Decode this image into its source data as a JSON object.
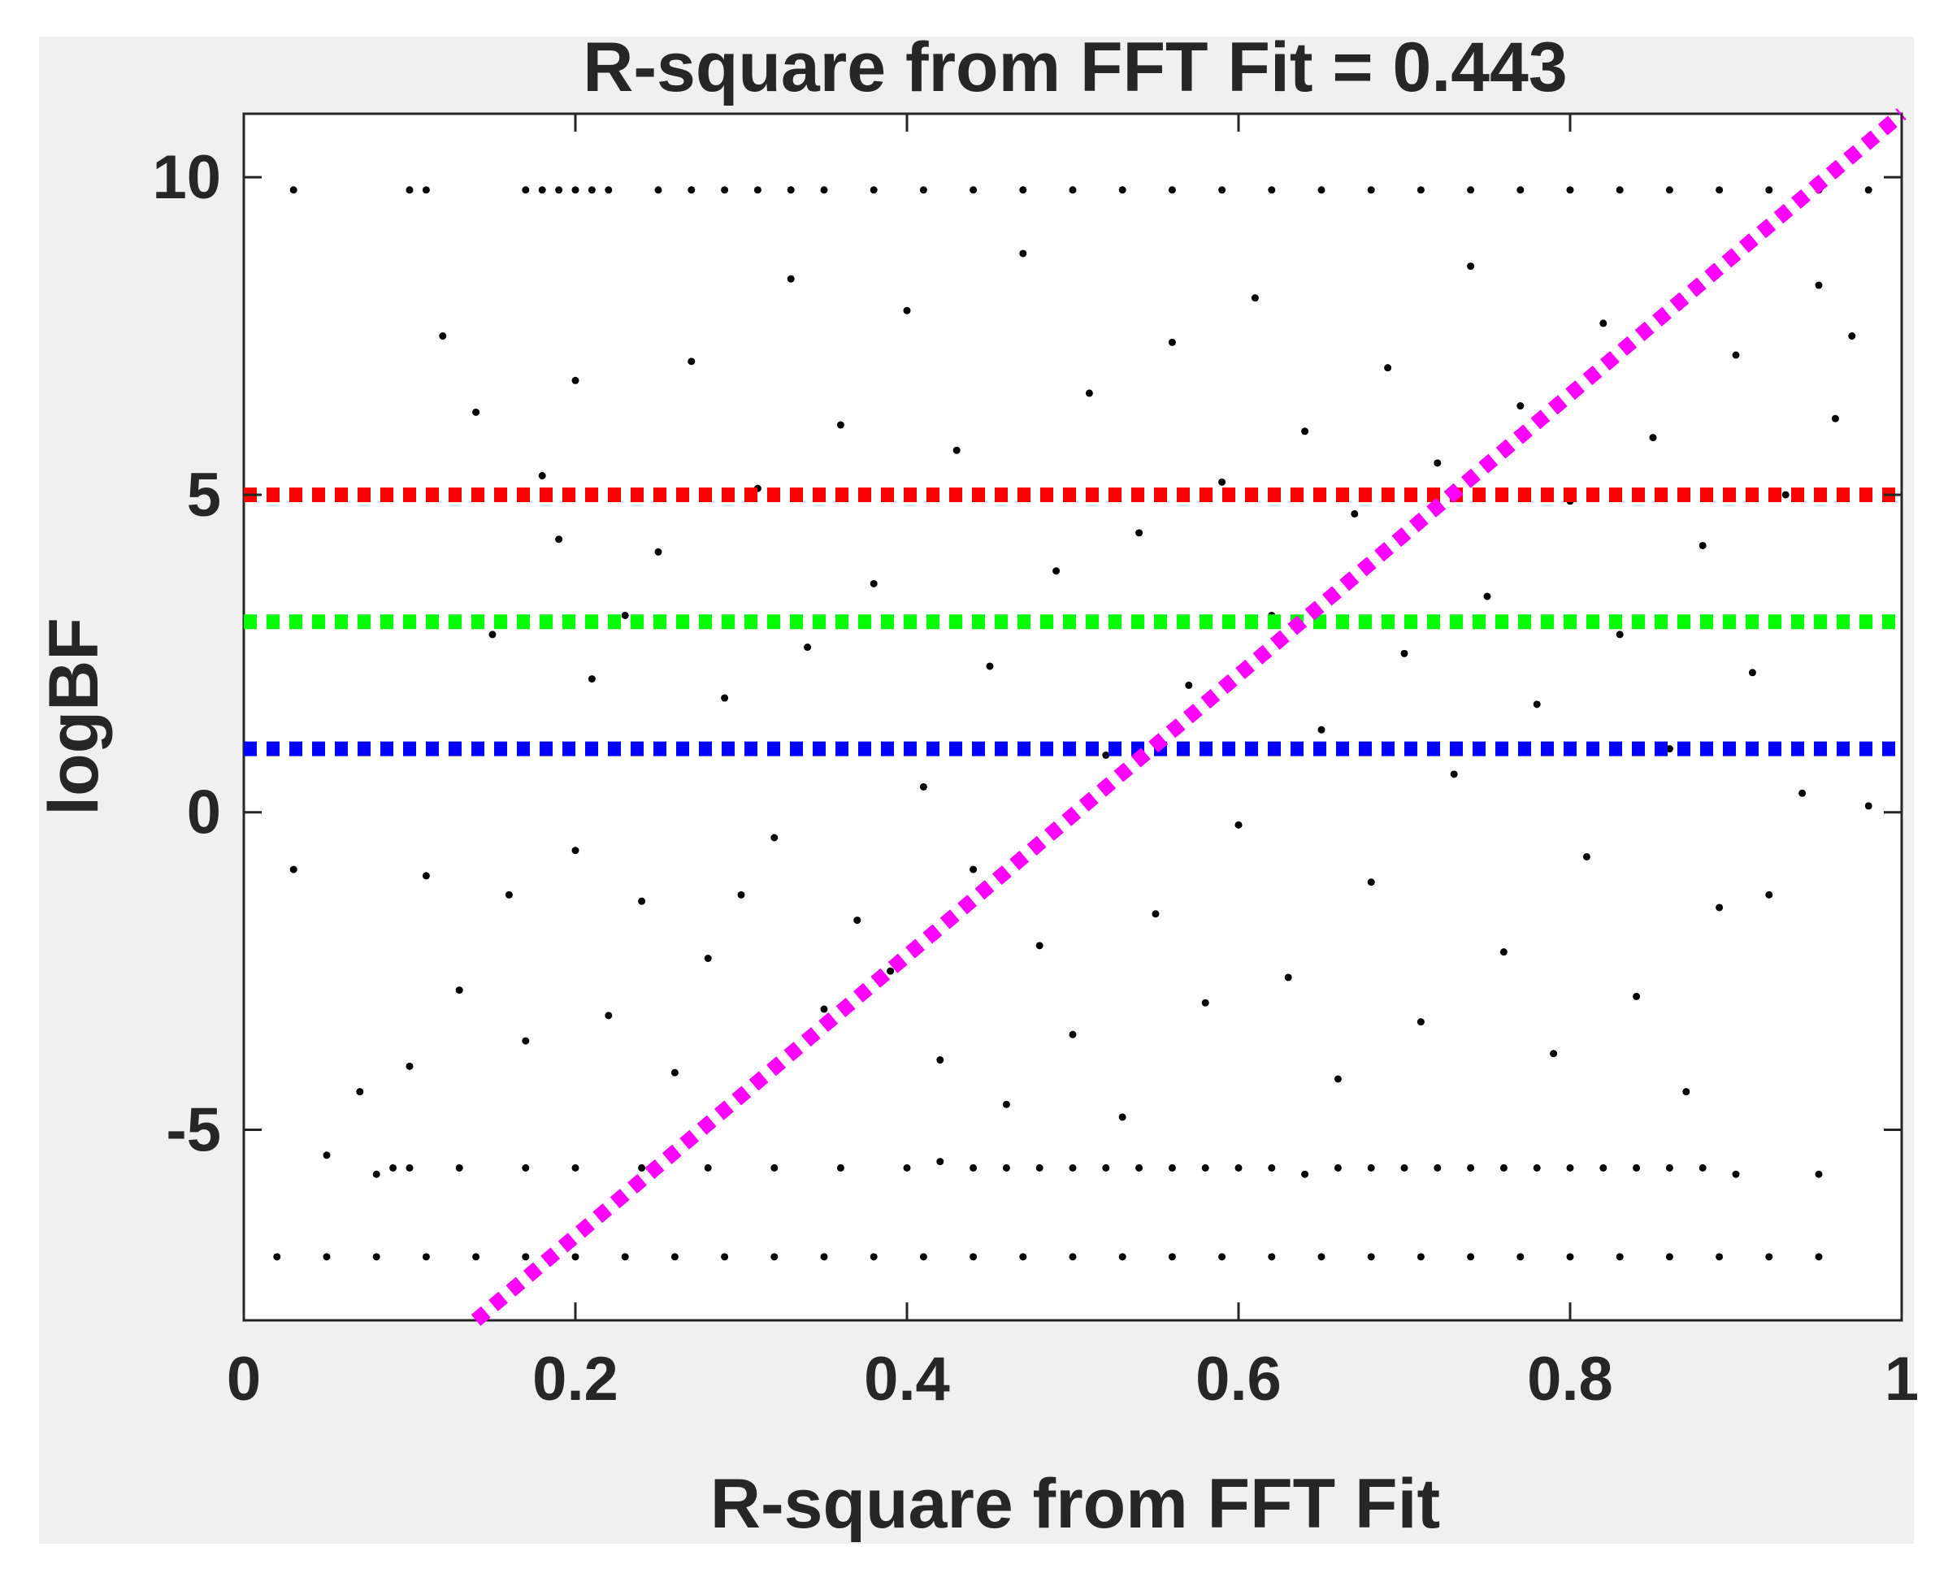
{
  "chart_data": {
    "type": "scatter",
    "title": "R-square from FFT Fit = 0.443",
    "xlabel": "R-square from FFT Fit",
    "ylabel": "logBF",
    "xlim": [
      0,
      1
    ],
    "ylim": [
      -8,
      11
    ],
    "xticks": [
      0,
      0.2,
      0.4,
      0.6,
      0.8,
      1
    ],
    "xtick_labels": [
      "0",
      "0.2",
      "0.4",
      "0.6",
      "0.8",
      "1"
    ],
    "yticks": [
      -5,
      0,
      5,
      10
    ],
    "ytick_labels": [
      "-5",
      "0",
      "5",
      "10"
    ],
    "grid": false,
    "point_color": "#000000",
    "background_color": "#f0f0f0",
    "plot_background_color": "#ffffff",
    "reference_lines": [
      {
        "orientation": "horizontal",
        "y": 5,
        "color": "#ff0000",
        "style": "dotted"
      },
      {
        "orientation": "horizontal",
        "y": 3,
        "color": "#00ff00",
        "style": "dotted"
      },
      {
        "orientation": "horizontal",
        "y": 1,
        "color": "#0000ff",
        "style": "dotted"
      }
    ],
    "fit_line": {
      "x": [
        0.14,
        1.0
      ],
      "y": [
        -8.0,
        11.0
      ],
      "color": "#ff00ff",
      "style": "dotted"
    },
    "scatter_description_values": {
      "upper_band_y": 9.8,
      "lower_band_y": -7.0,
      "secondary_lower_band_y": -5.6
    },
    "points": [
      [
        0.03,
        9.8
      ],
      [
        0.1,
        9.8
      ],
      [
        0.11,
        9.8
      ],
      [
        0.17,
        9.8
      ],
      [
        0.18,
        9.8
      ],
      [
        0.19,
        9.8
      ],
      [
        0.2,
        9.8
      ],
      [
        0.21,
        9.8
      ],
      [
        0.22,
        9.8
      ],
      [
        0.25,
        9.8
      ],
      [
        0.27,
        9.8
      ],
      [
        0.29,
        9.8
      ],
      [
        0.31,
        9.8
      ],
      [
        0.33,
        9.8
      ],
      [
        0.35,
        9.8
      ],
      [
        0.38,
        9.8
      ],
      [
        0.41,
        9.8
      ],
      [
        0.44,
        9.8
      ],
      [
        0.47,
        9.8
      ],
      [
        0.5,
        9.8
      ],
      [
        0.53,
        9.8
      ],
      [
        0.56,
        9.8
      ],
      [
        0.59,
        9.8
      ],
      [
        0.62,
        9.8
      ],
      [
        0.65,
        9.8
      ],
      [
        0.68,
        9.8
      ],
      [
        0.71,
        9.8
      ],
      [
        0.74,
        9.8
      ],
      [
        0.77,
        9.8
      ],
      [
        0.8,
        9.8
      ],
      [
        0.83,
        9.8
      ],
      [
        0.86,
        9.8
      ],
      [
        0.89,
        9.8
      ],
      [
        0.92,
        9.8
      ],
      [
        0.95,
        9.8
      ],
      [
        0.98,
        9.8
      ],
      [
        0.02,
        -7.0
      ],
      [
        0.05,
        -7.0
      ],
      [
        0.08,
        -7.0
      ],
      [
        0.11,
        -7.0
      ],
      [
        0.14,
        -7.0
      ],
      [
        0.17,
        -7.0
      ],
      [
        0.2,
        -7.0
      ],
      [
        0.23,
        -7.0
      ],
      [
        0.26,
        -7.0
      ],
      [
        0.29,
        -7.0
      ],
      [
        0.32,
        -7.0
      ],
      [
        0.35,
        -7.0
      ],
      [
        0.38,
        -7.0
      ],
      [
        0.41,
        -7.0
      ],
      [
        0.44,
        -7.0
      ],
      [
        0.47,
        -7.0
      ],
      [
        0.5,
        -7.0
      ],
      [
        0.53,
        -7.0
      ],
      [
        0.56,
        -7.0
      ],
      [
        0.59,
        -7.0
      ],
      [
        0.62,
        -7.0
      ],
      [
        0.65,
        -7.0
      ],
      [
        0.68,
        -7.0
      ],
      [
        0.71,
        -7.0
      ],
      [
        0.74,
        -7.0
      ],
      [
        0.77,
        -7.0
      ],
      [
        0.8,
        -7.0
      ],
      [
        0.83,
        -7.0
      ],
      [
        0.86,
        -7.0
      ],
      [
        0.89,
        -7.0
      ],
      [
        0.92,
        -7.0
      ],
      [
        0.95,
        -7.0
      ],
      [
        0.08,
        -5.7
      ],
      [
        0.09,
        -5.6
      ],
      [
        0.1,
        -5.6
      ],
      [
        0.13,
        -5.6
      ],
      [
        0.17,
        -5.6
      ],
      [
        0.2,
        -5.6
      ],
      [
        0.24,
        -5.6
      ],
      [
        0.28,
        -5.6
      ],
      [
        0.32,
        -5.6
      ],
      [
        0.36,
        -5.6
      ],
      [
        0.4,
        -5.6
      ],
      [
        0.42,
        -5.5
      ],
      [
        0.44,
        -5.6
      ],
      [
        0.46,
        -5.6
      ],
      [
        0.48,
        -5.6
      ],
      [
        0.5,
        -5.6
      ],
      [
        0.52,
        -5.6
      ],
      [
        0.54,
        -5.6
      ],
      [
        0.56,
        -5.6
      ],
      [
        0.58,
        -5.6
      ],
      [
        0.6,
        -5.6
      ],
      [
        0.62,
        -5.6
      ],
      [
        0.64,
        -5.7
      ],
      [
        0.66,
        -5.6
      ],
      [
        0.68,
        -5.6
      ],
      [
        0.7,
        -5.6
      ],
      [
        0.72,
        -5.6
      ],
      [
        0.74,
        -5.6
      ],
      [
        0.76,
        -5.6
      ],
      [
        0.78,
        -5.6
      ],
      [
        0.8,
        -5.6
      ],
      [
        0.82,
        -5.6
      ],
      [
        0.84,
        -5.6
      ],
      [
        0.86,
        -5.6
      ],
      [
        0.88,
        -5.6
      ],
      [
        0.9,
        -5.7
      ],
      [
        0.95,
        -5.7
      ],
      [
        0.03,
        -0.9
      ],
      [
        0.05,
        -5.4
      ],
      [
        0.07,
        -4.4
      ],
      [
        0.1,
        -4.0
      ],
      [
        0.11,
        -1.0
      ],
      [
        0.12,
        7.5
      ],
      [
        0.13,
        -2.8
      ],
      [
        0.14,
        6.3
      ],
      [
        0.15,
        2.8
      ],
      [
        0.16,
        -1.3
      ],
      [
        0.17,
        -3.6
      ],
      [
        0.18,
        5.3
      ],
      [
        0.19,
        4.3
      ],
      [
        0.2,
        6.8
      ],
      [
        0.2,
        -0.6
      ],
      [
        0.21,
        2.1
      ],
      [
        0.22,
        -3.2
      ],
      [
        0.23,
        3.1
      ],
      [
        0.24,
        -1.4
      ],
      [
        0.25,
        4.1
      ],
      [
        0.26,
        -4.1
      ],
      [
        0.27,
        7.1
      ],
      [
        0.28,
        -2.3
      ],
      [
        0.29,
        1.8
      ],
      [
        0.3,
        -1.3
      ],
      [
        0.31,
        5.1
      ],
      [
        0.32,
        -0.4
      ],
      [
        0.33,
        8.4
      ],
      [
        0.34,
        2.6
      ],
      [
        0.35,
        -3.1
      ],
      [
        0.36,
        6.1
      ],
      [
        0.37,
        -1.7
      ],
      [
        0.38,
        3.6
      ],
      [
        0.39,
        -2.5
      ],
      [
        0.4,
        7.9
      ],
      [
        0.41,
        0.4
      ],
      [
        0.42,
        -3.9
      ],
      [
        0.43,
        5.7
      ],
      [
        0.44,
        -0.9
      ],
      [
        0.45,
        2.3
      ],
      [
        0.46,
        -4.6
      ],
      [
        0.47,
        8.8
      ],
      [
        0.48,
        -2.1
      ],
      [
        0.49,
        3.8
      ],
      [
        0.5,
        -3.5
      ],
      [
        0.51,
        6.6
      ],
      [
        0.52,
        0.9
      ],
      [
        0.53,
        -4.8
      ],
      [
        0.54,
        4.4
      ],
      [
        0.55,
        -1.6
      ],
      [
        0.56,
        7.4
      ],
      [
        0.57,
        2.0
      ],
      [
        0.58,
        -3.0
      ],
      [
        0.59,
        5.2
      ],
      [
        0.6,
        -0.2
      ],
      [
        0.61,
        8.1
      ],
      [
        0.62,
        3.1
      ],
      [
        0.63,
        -2.6
      ],
      [
        0.64,
        6.0
      ],
      [
        0.65,
        1.3
      ],
      [
        0.66,
        -4.2
      ],
      [
        0.67,
        4.7
      ],
      [
        0.68,
        -1.1
      ],
      [
        0.69,
        7.0
      ],
      [
        0.7,
        2.5
      ],
      [
        0.71,
        -3.3
      ],
      [
        0.72,
        5.5
      ],
      [
        0.73,
        0.6
      ],
      [
        0.74,
        8.6
      ],
      [
        0.75,
        3.4
      ],
      [
        0.76,
        -2.2
      ],
      [
        0.77,
        6.4
      ],
      [
        0.78,
        1.7
      ],
      [
        0.79,
        -3.8
      ],
      [
        0.8,
        4.9
      ],
      [
        0.81,
        -0.7
      ],
      [
        0.82,
        7.7
      ],
      [
        0.83,
        2.8
      ],
      [
        0.84,
        -2.9
      ],
      [
        0.85,
        5.9
      ],
      [
        0.86,
        1.0
      ],
      [
        0.87,
        -4.4
      ],
      [
        0.88,
        4.2
      ],
      [
        0.89,
        -1.5
      ],
      [
        0.9,
        7.2
      ],
      [
        0.91,
        2.2
      ],
      [
        0.92,
        -1.3
      ],
      [
        0.93,
        5.0
      ],
      [
        0.94,
        0.3
      ],
      [
        0.95,
        8.3
      ],
      [
        0.96,
        6.2
      ],
      [
        0.97,
        7.5
      ],
      [
        0.98,
        0.1
      ]
    ]
  }
}
